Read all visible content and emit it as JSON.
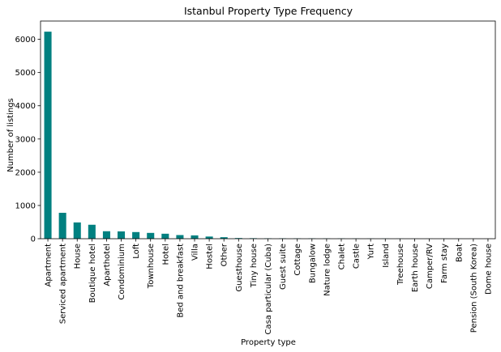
{
  "chart_data": {
    "type": "bar",
    "title": "Istanbul Property Type Frequency",
    "xlabel": "Property type",
    "ylabel": "Number of listings",
    "ylim": [
      0,
      6550
    ],
    "yticks": [
      0,
      1000,
      2000,
      3000,
      4000,
      5000,
      6000
    ],
    "grid": false,
    "bar_color": "#008080",
    "categories": [
      "Apartment",
      "Serviced apartment",
      "House",
      "Boutique hotel",
      "Aparthotel",
      "Condominium",
      "Loft",
      "Townhouse",
      "Hotel",
      "Bed and breakfast",
      "Villa",
      "Hostel",
      "Other",
      "Guesthouse",
      "Tiny house",
      "Casa particular (Cuba)",
      "Guest suite",
      "Cottage",
      "Bungalow",
      "Nature lodge",
      "Chalet",
      "Castle",
      "Yurt",
      "Island",
      "Treehouse",
      "Earth house",
      "Camper/RV",
      "Farm stay",
      "Boat",
      "Pension (South Korea)",
      "Dome house"
    ],
    "values": [
      6230,
      780,
      490,
      420,
      225,
      220,
      200,
      175,
      150,
      110,
      100,
      65,
      45,
      20,
      15,
      12,
      12,
      10,
      10,
      8,
      8,
      6,
      5,
      4,
      3,
      2,
      2,
      2,
      1,
      1,
      1
    ]
  }
}
